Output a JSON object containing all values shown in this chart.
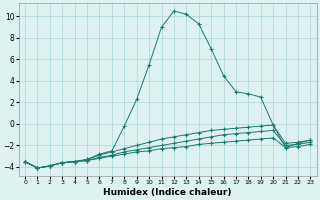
{
  "x": [
    0,
    1,
    2,
    3,
    4,
    5,
    6,
    7,
    8,
    9,
    10,
    11,
    12,
    13,
    14,
    15,
    16,
    17,
    18,
    19,
    20,
    21,
    22,
    23
  ],
  "line_big": [
    -3.5,
    -4.1,
    -3.9,
    -3.6,
    -3.5,
    -3.3,
    -2.8,
    -2.5,
    -0.2,
    2.3,
    5.5,
    9.0,
    10.5,
    10.2,
    9.3,
    7.0,
    4.5,
    3.0,
    2.8,
    2.5,
    -0.1,
    -2.2,
    -1.8,
    -1.5
  ],
  "line_upper": [
    -3.5,
    -4.1,
    -3.9,
    -3.6,
    -3.5,
    -3.3,
    -2.9,
    -2.6,
    -2.3,
    -2.0,
    -1.7,
    -1.4,
    -1.2,
    -1.0,
    -0.8,
    -0.6,
    -0.5,
    -0.4,
    -0.3,
    -0.2,
    -0.1,
    -1.8,
    -1.7,
    -1.5
  ],
  "line_mid": [
    -3.5,
    -4.1,
    -3.9,
    -3.6,
    -3.5,
    -3.4,
    -3.1,
    -2.9,
    -2.6,
    -2.4,
    -2.2,
    -2.0,
    -1.8,
    -1.6,
    -1.4,
    -1.2,
    -1.0,
    -0.9,
    -0.8,
    -0.7,
    -0.6,
    -2.0,
    -1.9,
    -1.7
  ],
  "line_low": [
    -3.5,
    -4.1,
    -3.9,
    -3.6,
    -3.5,
    -3.4,
    -3.2,
    -3.0,
    -2.8,
    -2.6,
    -2.5,
    -2.3,
    -2.2,
    -2.1,
    -1.9,
    -1.8,
    -1.7,
    -1.6,
    -1.5,
    -1.4,
    -1.3,
    -2.2,
    -2.1,
    -1.9
  ],
  "bg_color": "#dff2f2",
  "grid_color": "#aed4d4",
  "line_color": "#1a7a6e",
  "xlabel": "Humidex (Indice chaleur)",
  "xlim": [
    -0.5,
    23.5
  ],
  "ylim": [
    -4.8,
    11.2
  ],
  "yticks": [
    -4,
    -2,
    0,
    2,
    4,
    6,
    8,
    10
  ],
  "xticks": [
    0,
    1,
    2,
    3,
    4,
    5,
    6,
    7,
    8,
    9,
    10,
    11,
    12,
    13,
    14,
    15,
    16,
    17,
    18,
    19,
    20,
    21,
    22,
    23
  ]
}
